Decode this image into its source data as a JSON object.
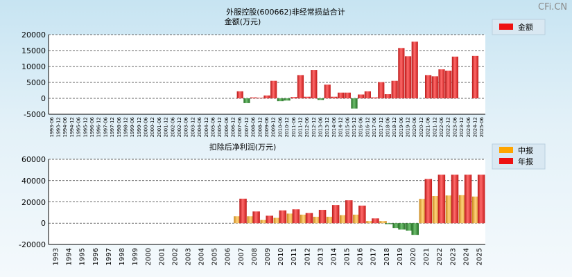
{
  "watermark": "CFi.CN",
  "chart_data": [
    {
      "type": "bar",
      "title": "外服控股(600662)非经常损益合计",
      "subtitle": "金额(万元)",
      "ylim": [
        -5000,
        20000
      ],
      "yticks": [
        "-5000",
        "0",
        "5000",
        "10000",
        "15000",
        "20000"
      ],
      "legend": [
        "金额"
      ],
      "legend_position": "top-right",
      "categories": [
        "1993-06",
        "1993-12",
        "1994-06",
        "1994-12",
        "1995-06",
        "1995-12",
        "1996-06",
        "1996-12",
        "1997-06",
        "1997-12",
        "1998-06",
        "1998-12",
        "1999-06",
        "1999-12",
        "2000-06",
        "2000-12",
        "2001-06",
        "2001-12",
        "2002-06",
        "2002-12",
        "2003-06",
        "2003-12",
        "2004-06",
        "2004-12",
        "2005-06",
        "2005-12",
        "2006-06",
        "2006-12",
        "2007-06",
        "2007-12",
        "2008-06",
        "2008-12",
        "2009-06",
        "2009-12",
        "2010-06",
        "2010-12",
        "2011-06",
        "2011-12",
        "2012-06",
        "2012-12",
        "2013-06",
        "2013-12",
        "2014-06",
        "2014-12",
        "2015-06",
        "2015-12",
        "2016-06",
        "2016-12",
        "2017-06",
        "2017-12",
        "2018-06",
        "2018-12",
        "2019-06",
        "2019-12",
        "2020-06",
        "2020-12",
        "2021-06",
        "2021-12",
        "2022-06",
        "2022-12",
        "2023-06",
        "2023-12",
        "2024-06",
        "2024-12",
        "2025-06"
      ],
      "values": [
        null,
        null,
        null,
        null,
        null,
        null,
        null,
        null,
        null,
        null,
        null,
        null,
        null,
        null,
        null,
        null,
        null,
        null,
        null,
        null,
        null,
        null,
        null,
        null,
        null,
        null,
        null,
        null,
        2200,
        -1500,
        300,
        200,
        900,
        5500,
        -900,
        -700,
        400,
        7300,
        500,
        8900,
        -500,
        4300,
        500,
        1800,
        1800,
        -3200,
        1200,
        2200,
        300,
        5100,
        1300,
        5500,
        15800,
        13200,
        17800,
        null,
        7300,
        6900,
        9100,
        8700,
        13100,
        null,
        null,
        13300,
        null
      ]
    },
    {
      "type": "bar",
      "title": "扣除后净利润(万元)",
      "ylim": [
        -20000,
        60000
      ],
      "yticks": [
        "-20000",
        "0",
        "20000",
        "40000",
        "60000"
      ],
      "legend_position": "top-right",
      "categories": [
        "1993",
        "1994",
        "1995",
        "1996",
        "1997",
        "1998",
        "1999",
        "2000",
        "2001",
        "2002",
        "2003",
        "2004",
        "2005",
        "2006",
        "2007",
        "2008",
        "2009",
        "2010",
        "2011",
        "2012",
        "2013",
        "2014",
        "2015",
        "2016",
        "2017",
        "2018",
        "2019",
        "2020",
        "2021",
        "2022",
        "2023",
        "2024",
        "2025"
      ],
      "series": [
        {
          "name": "中报",
          "values": [
            null,
            null,
            null,
            null,
            null,
            null,
            null,
            null,
            null,
            null,
            null,
            null,
            null,
            null,
            6500,
            6500,
            3000,
            5000,
            9000,
            8000,
            6000,
            6000,
            7500,
            8000,
            2000,
            2000,
            -4500,
            -7000,
            22800,
            25500,
            26000,
            26300,
            25000
          ]
        },
        {
          "name": "年报",
          "values": [
            null,
            null,
            null,
            null,
            null,
            null,
            null,
            null,
            null,
            null,
            null,
            null,
            null,
            null,
            23000,
            11000,
            7000,
            12000,
            13000,
            9500,
            12500,
            17000,
            21500,
            16500,
            4500,
            -1000,
            -6000,
            -11000,
            41500,
            45500,
            45500,
            45500,
            45500
          ]
        }
      ]
    }
  ]
}
